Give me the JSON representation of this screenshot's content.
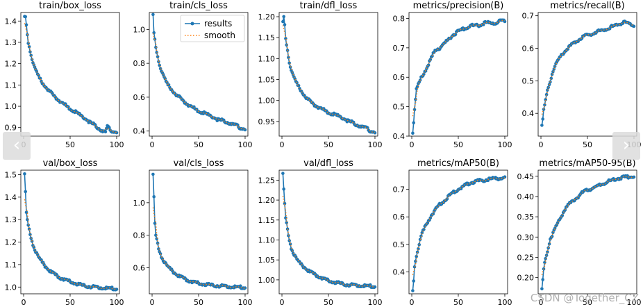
{
  "legend": {
    "results_label": "results",
    "smooth_label": "smooth"
  },
  "navigation": {
    "prev_glyph": "‹",
    "next_glyph": "›"
  },
  "watermark": "CSDN @Together_CZ",
  "colors": {
    "results": "#1f77b4",
    "smooth": "#ff7f0e"
  },
  "chart_data": [
    {
      "type": "line",
      "title": "train/box_loss",
      "xlim": [
        -3,
        103
      ],
      "ylim": [
        0.86,
        1.44
      ],
      "yticks": [
        0.9,
        1.0,
        1.1,
        1.2,
        1.3,
        1.4
      ],
      "xticks": [
        0,
        50,
        100
      ],
      "ytick_decimals": 1,
      "key_x": [
        1,
        2,
        3,
        5,
        8,
        12,
        16,
        20,
        25,
        30,
        35,
        40,
        45,
        50,
        55,
        60,
        65,
        70,
        75,
        80,
        85,
        88,
        90,
        92,
        95,
        98,
        100
      ],
      "key_y": [
        1.415,
        1.42,
        1.38,
        1.3,
        1.24,
        1.18,
        1.14,
        1.11,
        1.085,
        1.06,
        1.04,
        1.02,
        1.005,
        0.99,
        0.975,
        0.96,
        0.945,
        0.93,
        0.915,
        0.9,
        0.885,
        0.88,
        0.905,
        0.895,
        0.885,
        0.88,
        0.878
      ]
    },
    {
      "type": "line",
      "title": "train/cls_loss",
      "xlim": [
        -3,
        103
      ],
      "ylim": [
        0.37,
        1.1
      ],
      "yticks": [
        0.4,
        0.6,
        0.8,
        1.0
      ],
      "xticks": [
        0,
        50,
        100
      ],
      "ytick_decimals": 1,
      "legend": true,
      "key_x": [
        1,
        2,
        4,
        6,
        8,
        12,
        16,
        20,
        25,
        30,
        40,
        50,
        60,
        70,
        80,
        90,
        95,
        100
      ],
      "key_y": [
        1.08,
        0.98,
        0.9,
        0.84,
        0.79,
        0.73,
        0.68,
        0.65,
        0.62,
        0.595,
        0.55,
        0.52,
        0.495,
        0.47,
        0.455,
        0.435,
        0.42,
        0.41
      ]
    },
    {
      "type": "line",
      "title": "train/dfl_loss",
      "xlim": [
        -3,
        103
      ],
      "ylim": [
        0.915,
        1.21
      ],
      "yticks": [
        0.95,
        1.0,
        1.05,
        1.1,
        1.15,
        1.2
      ],
      "xticks": [
        0,
        50,
        100
      ],
      "ytick_decimals": 2,
      "key_x": [
        1,
        2,
        3,
        4,
        6,
        8,
        12,
        16,
        20,
        25,
        30,
        35,
        40,
        50,
        60,
        70,
        80,
        90,
        95,
        100
      ],
      "key_y": [
        1.185,
        1.2,
        1.18,
        1.15,
        1.12,
        1.09,
        1.06,
        1.04,
        1.025,
        1.01,
        0.998,
        0.99,
        0.983,
        0.972,
        0.963,
        0.953,
        0.943,
        0.935,
        0.928,
        0.924
      ]
    },
    {
      "type": "line",
      "title": "metrics/precision(B)",
      "xlim": [
        -3,
        103
      ],
      "ylim": [
        0.4,
        0.82
      ],
      "yticks": [
        0.4,
        0.5,
        0.6,
        0.7,
        0.8
      ],
      "xticks": [
        0,
        50,
        100
      ],
      "ytick_decimals": 1,
      "key_x": [
        1,
        2,
        3,
        5,
        8,
        10,
        15,
        20,
        25,
        30,
        35,
        40,
        45,
        50,
        55,
        60,
        65,
        70,
        75,
        80,
        85,
        90,
        95,
        100
      ],
      "key_y": [
        0.415,
        0.45,
        0.49,
        0.56,
        0.58,
        0.6,
        0.625,
        0.66,
        0.69,
        0.7,
        0.715,
        0.73,
        0.745,
        0.755,
        0.765,
        0.77,
        0.775,
        0.775,
        0.78,
        0.785,
        0.785,
        0.785,
        0.79,
        0.79
      ]
    },
    {
      "type": "line",
      "title": "metrics/recall(B)",
      "xlim": [
        -3,
        103
      ],
      "ylim": [
        0.33,
        0.71
      ],
      "yticks": [
        0.4,
        0.5,
        0.6,
        0.7
      ],
      "xticks": [
        0,
        50,
        100
      ],
      "ytick_decimals": 1,
      "key_x": [
        1,
        2,
        3,
        5,
        7,
        10,
        13,
        16,
        20,
        25,
        30,
        35,
        40,
        45,
        50,
        55,
        60,
        65,
        70,
        75,
        80,
        85,
        90,
        95,
        100
      ],
      "key_y": [
        0.36,
        0.38,
        0.41,
        0.44,
        0.47,
        0.5,
        0.53,
        0.55,
        0.57,
        0.59,
        0.605,
        0.615,
        0.625,
        0.635,
        0.64,
        0.645,
        0.65,
        0.655,
        0.66,
        0.665,
        0.67,
        0.675,
        0.68,
        0.675,
        0.67
      ]
    },
    {
      "type": "line",
      "title": "val/box_loss",
      "xlim": [
        -3,
        103
      ],
      "ylim": [
        0.97,
        1.52
      ],
      "yticks": [
        1.0,
        1.1,
        1.2,
        1.3,
        1.4,
        1.5
      ],
      "xticks": [
        0,
        50,
        100
      ],
      "ytick_decimals": 1,
      "key_x": [
        1,
        2,
        3,
        5,
        8,
        10,
        15,
        20,
        25,
        30,
        40,
        50,
        60,
        70,
        80,
        90,
        100
      ],
      "key_y": [
        1.5,
        1.42,
        1.33,
        1.27,
        1.22,
        1.19,
        1.14,
        1.11,
        1.085,
        1.065,
        1.04,
        1.025,
        1.01,
        1.003,
        0.998,
        0.995,
        0.993
      ]
    },
    {
      "type": "line",
      "title": "val/cls_loss",
      "xlim": [
        -3,
        103
      ],
      "ylim": [
        0.44,
        1.2
      ],
      "yticks": [
        0.6,
        0.8,
        1.0
      ],
      "xticks": [
        0,
        50,
        100
      ],
      "ytick_decimals": 1,
      "key_x": [
        1,
        2,
        3,
        4,
        5,
        7,
        10,
        15,
        20,
        25,
        30,
        40,
        50,
        60,
        70,
        80,
        90,
        100
      ],
      "key_y": [
        1.17,
        1.03,
        0.87,
        0.8,
        0.77,
        0.72,
        0.67,
        0.62,
        0.59,
        0.565,
        0.545,
        0.52,
        0.505,
        0.495,
        0.49,
        0.485,
        0.482,
        0.48
      ]
    },
    {
      "type": "line",
      "title": "val/dfl_loss",
      "xlim": [
        -3,
        103
      ],
      "ylim": [
        0.965,
        1.275
      ],
      "yticks": [
        1.0,
        1.05,
        1.1,
        1.15,
        1.2,
        1.25
      ],
      "xticks": [
        0,
        50,
        100
      ],
      "ytick_decimals": 2,
      "key_x": [
        1,
        2,
        3,
        4,
        6,
        8,
        10,
        15,
        20,
        25,
        30,
        40,
        50,
        60,
        70,
        80,
        90,
        100
      ],
      "key_y": [
        1.265,
        1.225,
        1.19,
        1.155,
        1.125,
        1.1,
        1.08,
        1.055,
        1.04,
        1.03,
        1.02,
        1.008,
        0.998,
        0.992,
        0.988,
        0.986,
        0.985,
        0.984
      ]
    },
    {
      "type": "line",
      "title": "metrics/mAP50(B)",
      "xlim": [
        -3,
        103
      ],
      "ylim": [
        0.32,
        0.77
      ],
      "yticks": [
        0.4,
        0.5,
        0.6,
        0.7
      ],
      "xticks": [
        0,
        50,
        100
      ],
      "ytick_decimals": 1,
      "key_x": [
        1,
        2,
        3,
        5,
        8,
        10,
        15,
        20,
        25,
        30,
        35,
        40,
        45,
        50,
        55,
        60,
        70,
        80,
        90,
        100
      ],
      "key_y": [
        0.33,
        0.37,
        0.42,
        0.46,
        0.5,
        0.53,
        0.57,
        0.6,
        0.625,
        0.645,
        0.66,
        0.675,
        0.69,
        0.7,
        0.71,
        0.72,
        0.73,
        0.735,
        0.74,
        0.74
      ]
    },
    {
      "type": "line",
      "title": "metrics/mAP50-95(B)",
      "xlim": [
        -3,
        103
      ],
      "ylim": [
        0.16,
        0.465
      ],
      "yticks": [
        0.2,
        0.25,
        0.3,
        0.35,
        0.4,
        0.45
      ],
      "xticks": [
        0,
        50,
        100
      ],
      "ytick_decimals": 2,
      "key_x": [
        1,
        2,
        3,
        5,
        8,
        10,
        15,
        20,
        25,
        30,
        35,
        40,
        45,
        50,
        55,
        60,
        70,
        80,
        90,
        100
      ],
      "key_y": [
        0.17,
        0.195,
        0.22,
        0.25,
        0.275,
        0.295,
        0.32,
        0.345,
        0.365,
        0.38,
        0.39,
        0.4,
        0.41,
        0.415,
        0.42,
        0.425,
        0.435,
        0.443,
        0.448,
        0.45
      ]
    }
  ]
}
